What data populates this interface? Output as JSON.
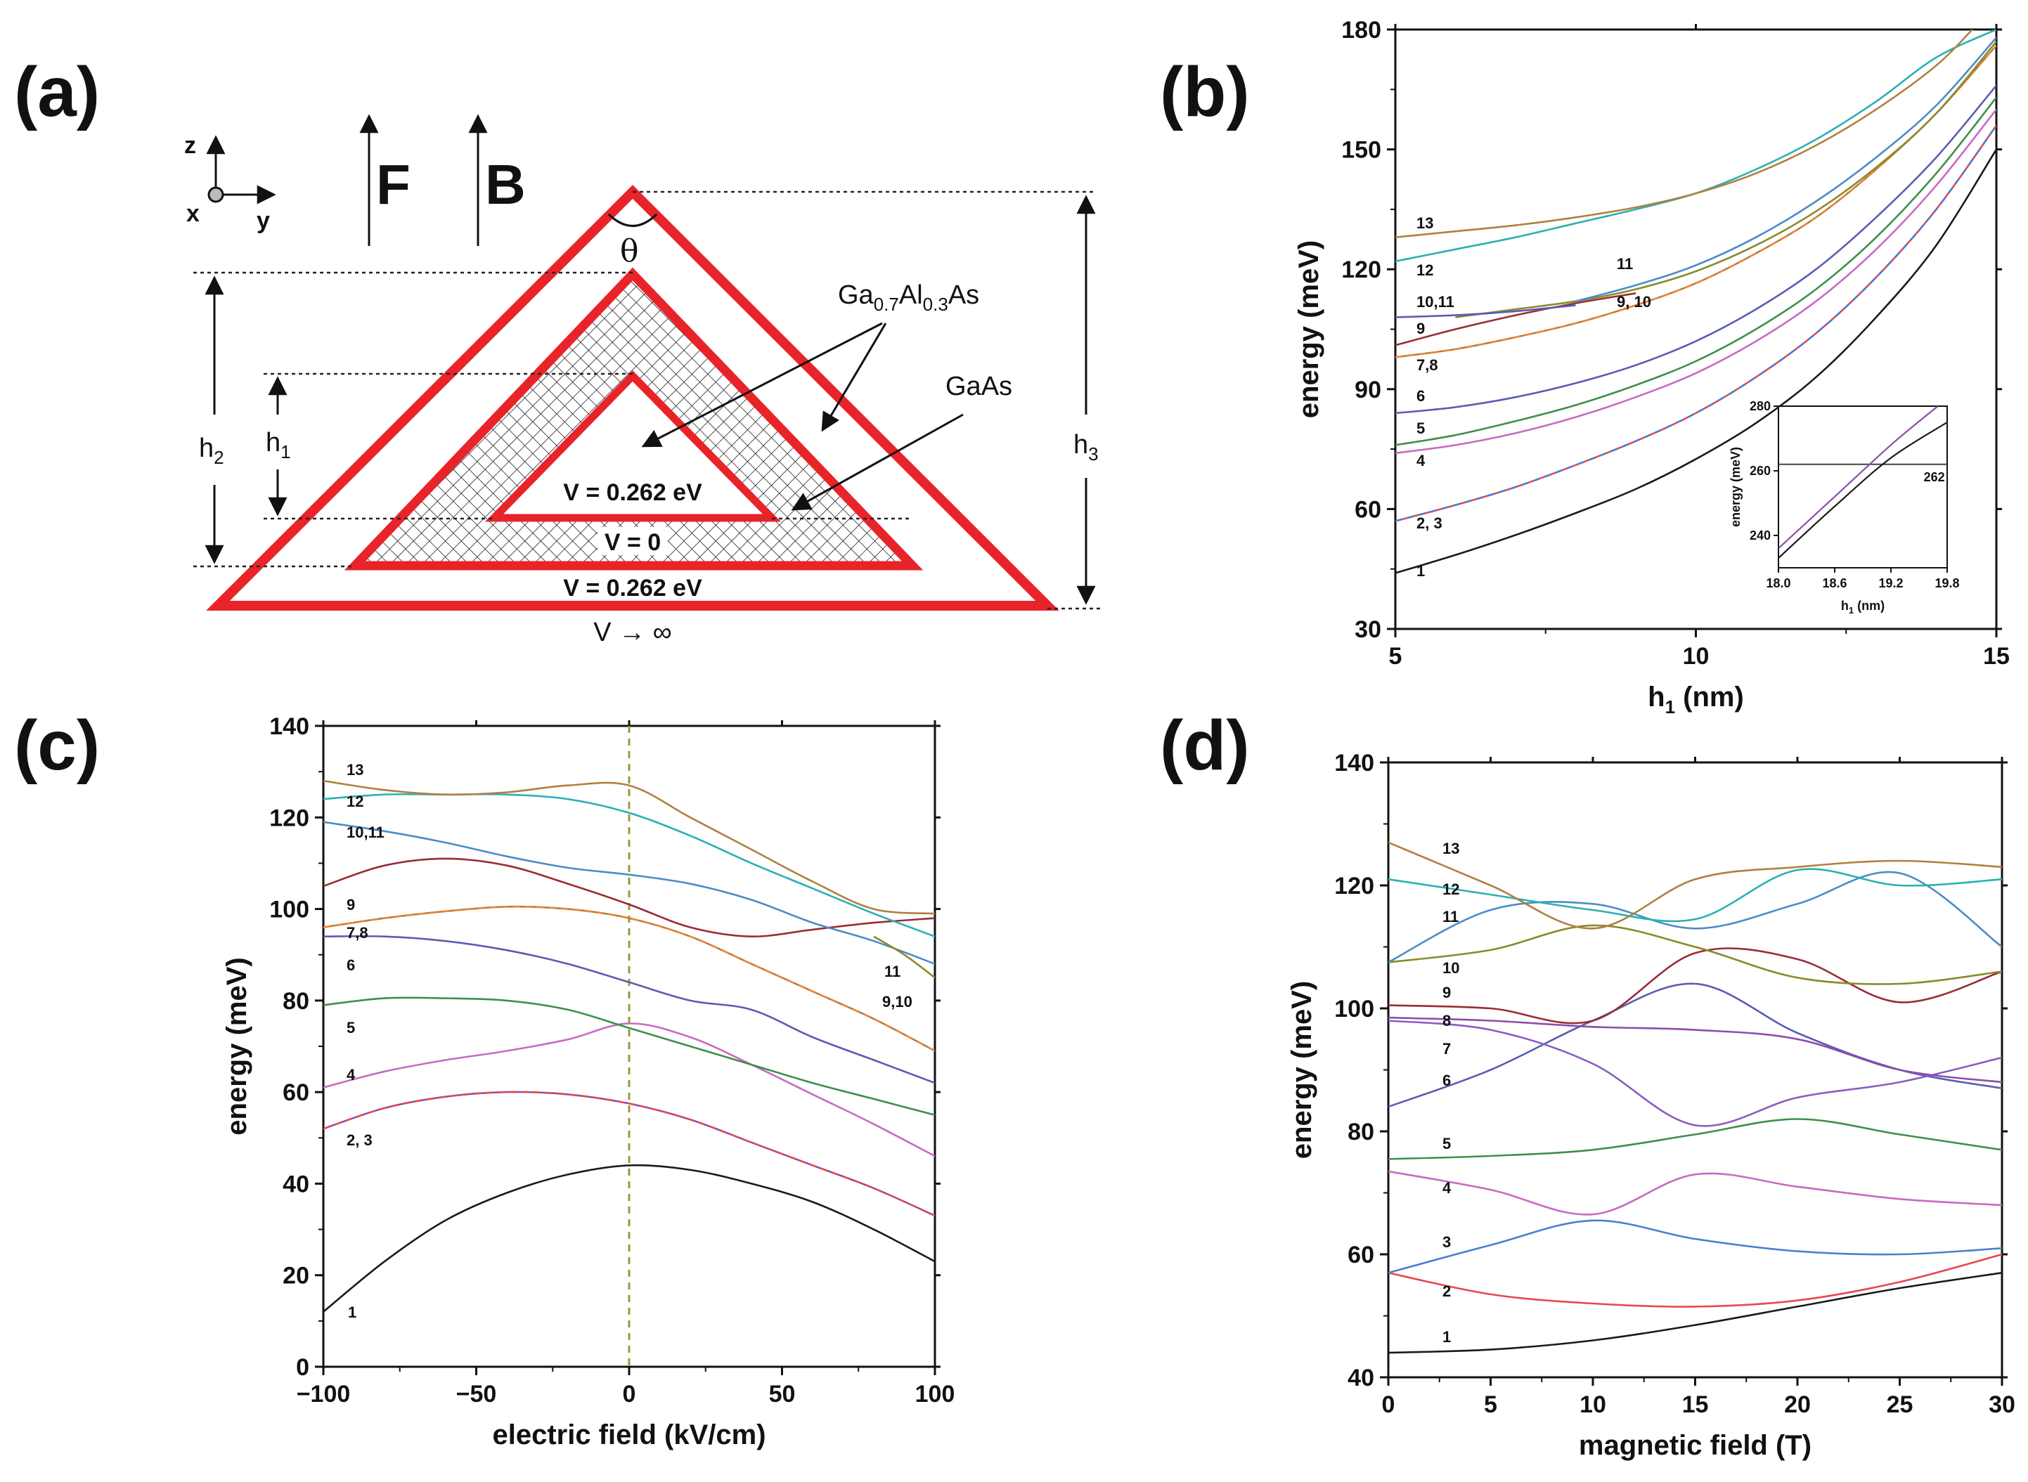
{
  "panel_labels": {
    "a": "(a)",
    "b": "(b)",
    "c": "(c)",
    "d": "(d)"
  },
  "diagram": {
    "axis_z": "z",
    "axis_x": "x",
    "axis_y": "y",
    "field_F": "F",
    "field_B": "B",
    "angle": "θ",
    "barrier_material": "Ga0.7Al0.3As",
    "barrier_parts": {
      "base1": "Ga",
      "sub1": "0.7",
      "base2": "Al",
      "sub2": "0.3",
      "base3": "As"
    },
    "well_material": "GaAs",
    "v_inner": "V = 0.262 eV",
    "v_well": "V = 0",
    "v_outer": "V = 0.262 eV",
    "v_infinite": "V → ∞",
    "h1": {
      "base": "h",
      "sub": "1"
    },
    "h2": {
      "base": "h",
      "sub": "2"
    },
    "h3": {
      "base": "h",
      "sub": "3"
    }
  },
  "colors": {
    "red": "#e8242a",
    "s1": "#1a1a1a",
    "s2": "#e8484f",
    "s3": "#4a7fd0",
    "s4": "#c86ac2",
    "s5": "#3f8f4a",
    "s6": "#5a5cb5",
    "s7": "#8a5dc0",
    "s8": "#8b4fa8",
    "s9": "#9a2b36",
    "s10": "#8a8a2a",
    "s11": "#4b8cc8",
    "s12": "#2ab0b4",
    "s13": "#b08040",
    "orange": "#f0843a",
    "vline": "#9a9a3a"
  },
  "chart_data": [
    {
      "id": "b",
      "type": "line",
      "xlabel": {
        "base": "h",
        "sub": "1",
        "rest": " (nm)"
      },
      "ylabel": "energy (meV)",
      "xlim": [
        5,
        15
      ],
      "ylim": [
        30,
        180
      ],
      "xticks": [
        "5",
        "10",
        "15"
      ],
      "yticks": [
        "30",
        "60",
        "90",
        "120",
        "150",
        "180"
      ],
      "series": [
        {
          "name": "1",
          "color": "s1",
          "x": [
            5,
            6,
            7,
            8,
            9,
            10,
            11,
            12,
            13,
            14,
            15
          ],
          "y": [
            44,
            48.5,
            53.5,
            59,
            65,
            72.5,
            81.5,
            93,
            108,
            126,
            150
          ]
        },
        {
          "name": "2, 3",
          "color": "s2",
          "dashed_with": "s3",
          "x": [
            5,
            6,
            7,
            8,
            9,
            10,
            11,
            12,
            13,
            14,
            15
          ],
          "y": [
            57,
            61,
            65.5,
            71,
            77,
            84,
            93,
            104,
            118,
            135,
            156
          ]
        },
        {
          "name": "4",
          "color": "s4",
          "x": [
            5,
            6,
            7,
            8,
            9,
            10,
            11,
            12,
            13,
            14,
            15
          ],
          "y": [
            74,
            76,
            79,
            83,
            88,
            94,
            102,
            112,
            125,
            141,
            160
          ]
        },
        {
          "name": "5",
          "color": "s5",
          "x": [
            5,
            6,
            7,
            8,
            9,
            10,
            11,
            12,
            13,
            14,
            15
          ],
          "y": [
            76,
            78.5,
            82,
            86,
            91,
            97,
            105,
            115,
            128,
            144,
            163
          ]
        },
        {
          "name": "6",
          "color": "s6",
          "x": [
            5,
            6,
            7,
            8,
            9,
            10,
            11,
            12,
            13,
            14,
            15
          ],
          "y": [
            84,
            85.5,
            88,
            91.5,
            96,
            102,
            110,
            120,
            133,
            148,
            166
          ]
        },
        {
          "name": "7,8",
          "color": "s13",
          "dashed_with": "orange",
          "x": [
            5,
            6,
            7,
            8,
            9,
            10,
            11,
            12,
            13,
            14,
            15
          ],
          "y": [
            98,
            100,
            103,
            106.5,
            111,
            116.5,
            124,
            133,
            145,
            159,
            176
          ]
        },
        {
          "name": "9",
          "color": "s9",
          "x": [
            5,
            6,
            7,
            8,
            9
          ],
          "y": [
            101,
            105,
            108.5,
            111.5,
            114
          ]
        },
        {
          "name": "9, 10",
          "color": "s10",
          "x": [
            6,
            7,
            8,
            9,
            10,
            11,
            12,
            13,
            14,
            15
          ],
          "y": [
            108,
            110,
            112,
            115,
            119.5,
            126,
            134.5,
            145.5,
            159,
            177
          ]
        },
        {
          "name": "10,11",
          "color": "s6",
          "x": [
            5,
            6,
            7,
            8
          ],
          "y": [
            108,
            108.5,
            109.5,
            111
          ]
        },
        {
          "name": "11",
          "color": "s11",
          "x": [
            8,
            9,
            10,
            11,
            12,
            13,
            14,
            15
          ],
          "y": [
            112,
            116,
            121,
            128,
            137,
            148,
            161,
            178
          ]
        },
        {
          "name": "12",
          "color": "s12",
          "x": [
            5,
            6,
            7,
            8,
            9,
            10,
            11,
            12,
            13,
            14,
            15
          ],
          "y": [
            122,
            125,
            128,
            131.5,
            135,
            139,
            145,
            152.5,
            162,
            173,
            180
          ]
        },
        {
          "name": "13",
          "color": "s13",
          "x": [
            5,
            6,
            7,
            8,
            9,
            10,
            11,
            12,
            13,
            14,
            14.6
          ],
          "y": [
            128,
            129.5,
            131,
            133,
            135.5,
            139,
            144,
            151,
            160,
            171,
            180
          ]
        }
      ],
      "inset": {
        "xlabel": {
          "base": "h",
          "sub": "1",
          "rest": " (nm)"
        },
        "ylabel": "energy (meV)",
        "xlim": [
          18.0,
          19.8
        ],
        "ylim": [
          230,
          280
        ],
        "xticks": [
          "18.0",
          "18.6",
          "19.2",
          "19.8"
        ],
        "yticks": [
          "240",
          "260",
          "280"
        ],
        "hline": 262,
        "hline_label": "262",
        "series": [
          {
            "color": "s8",
            "x": [
              18.0,
              18.6,
              19.2,
              19.7
            ],
            "y": [
              236,
              252,
              268,
              280
            ]
          },
          {
            "color": "s1",
            "x": [
              18.0,
              18.6,
              19.2,
              19.8
            ],
            "y": [
              233,
              249,
              264,
              275
            ]
          }
        ]
      }
    },
    {
      "id": "c",
      "type": "line",
      "xlabel": "electric field (kV/cm)",
      "ylabel": "energy (meV)",
      "xlim": [
        -100,
        100
      ],
      "ylim": [
        0,
        140
      ],
      "xticks": [
        "−100",
        "−50",
        "0",
        "50",
        "100"
      ],
      "yticks": [
        "0",
        "20",
        "40",
        "60",
        "80",
        "100",
        "120",
        "140"
      ],
      "vline": 0,
      "series": [
        {
          "name": "1",
          "color": "s1",
          "x": [
            -100,
            -80,
            -60,
            -40,
            -20,
            0,
            20,
            40,
            60,
            80,
            100
          ],
          "y": [
            12,
            23,
            32,
            38,
            42,
            44,
            43,
            40,
            36,
            30,
            23
          ]
        },
        {
          "name": "2, 3",
          "color": "s8",
          "dashed_with": "s2",
          "x": [
            -100,
            -80,
            -60,
            -40,
            -20,
            0,
            20,
            40,
            60,
            80,
            100
          ],
          "y": [
            52,
            56.5,
            59,
            60,
            59.5,
            57.5,
            54,
            49,
            44,
            39,
            33
          ]
        },
        {
          "name": "4",
          "color": "s4",
          "x": [
            -100,
            -80,
            -60,
            -40,
            -20,
            0,
            20,
            40,
            60,
            80,
            100
          ],
          "y": [
            61,
            64.5,
            67,
            69,
            71.5,
            75,
            72,
            66,
            59.5,
            53,
            46
          ]
        },
        {
          "name": "5",
          "color": "s5",
          "x": [
            -100,
            -80,
            -60,
            -40,
            -20,
            0,
            20,
            40,
            60,
            80,
            100
          ],
          "y": [
            79,
            80.5,
            80.5,
            80,
            78,
            74,
            70,
            66,
            62,
            58.5,
            55
          ]
        },
        {
          "name": "6",
          "color": "s6",
          "x": [
            -100,
            -80,
            -60,
            -40,
            -20,
            0,
            20,
            40,
            60,
            80,
            100
          ],
          "y": [
            94,
            94,
            93,
            91,
            88,
            84,
            80,
            78,
            72,
            67,
            62
          ]
        },
        {
          "name": "7,8",
          "color": "s13",
          "dashed_with": "orange",
          "x": [
            -100,
            -80,
            -60,
            -40,
            -20,
            0,
            20,
            40,
            60,
            80,
            100
          ],
          "y": [
            96,
            98,
            99.5,
            100.5,
            100,
            98,
            94,
            88,
            82,
            76,
            69
          ]
        },
        {
          "name": "9",
          "color": "s9",
          "x": [
            -100,
            -80,
            -60,
            -40,
            -20,
            0,
            20,
            40,
            60,
            80,
            100
          ],
          "y": [
            105,
            109.5,
            111,
            109.5,
            105.5,
            101,
            96,
            94,
            95.5,
            97,
            98
          ]
        },
        {
          "name": "10,11",
          "color": "s11",
          "x": [
            -100,
            -80,
            -60,
            -40,
            -20,
            0,
            20,
            40,
            60,
            80,
            100
          ],
          "y": [
            119,
            117,
            114.5,
            111.5,
            109,
            107.5,
            105.5,
            102,
            97,
            93,
            88
          ]
        },
        {
          "name": "9,10",
          "color": "s10",
          "x": [
            80,
            90,
            100
          ],
          "y": [
            94,
            90,
            85
          ]
        },
        {
          "name": "12",
          "color": "s12",
          "x": [
            -100,
            -80,
            -60,
            -40,
            -20,
            0,
            20,
            40,
            60,
            80,
            100
          ],
          "y": [
            124,
            125,
            125,
            125,
            124,
            121,
            116,
            110,
            104.5,
            99,
            94
          ]
        },
        {
          "name": "13",
          "color": "s13",
          "x": [
            -100,
            -80,
            -60,
            -40,
            -20,
            0,
            20,
            40,
            60,
            80,
            100
          ],
          "y": [
            128,
            126,
            125,
            125.5,
            127,
            127,
            120,
            113,
            106,
            100,
            99
          ]
        }
      ],
      "labels_right": {
        "11": "11",
        "9,10": "9,10"
      }
    },
    {
      "id": "d",
      "type": "line",
      "xlabel": "magnetic field (T)",
      "ylabel": "energy (meV)",
      "xlim": [
        0,
        30
      ],
      "ylim": [
        40,
        140
      ],
      "xticks": [
        "0",
        "5",
        "10",
        "15",
        "20",
        "25",
        "30"
      ],
      "yticks": [
        "40",
        "60",
        "80",
        "100",
        "120",
        "140"
      ],
      "series": [
        {
          "name": "1",
          "color": "s1",
          "x": [
            0,
            5,
            10,
            15,
            20,
            25,
            30
          ],
          "y": [
            44,
            44.5,
            46,
            48.5,
            51.5,
            54.5,
            57
          ]
        },
        {
          "name": "2",
          "color": "s2",
          "x": [
            0,
            5,
            10,
            15,
            20,
            25,
            30
          ],
          "y": [
            57,
            53.5,
            52,
            51.5,
            52.5,
            55.5,
            60
          ]
        },
        {
          "name": "3",
          "color": "s3",
          "x": [
            0,
            5,
            10,
            15,
            20,
            25,
            30
          ],
          "y": [
            57,
            61.5,
            65.5,
            62.5,
            60.5,
            60,
            61
          ]
        },
        {
          "name": "4",
          "color": "s4",
          "x": [
            0,
            5,
            10,
            15,
            20,
            25,
            30
          ],
          "y": [
            73.5,
            70.5,
            66.5,
            73,
            71,
            69,
            68
          ]
        },
        {
          "name": "5",
          "color": "s5",
          "x": [
            0,
            5,
            10,
            15,
            20,
            25,
            30
          ],
          "y": [
            75.5,
            76,
            77,
            79.5,
            82,
            79.5,
            77
          ]
        },
        {
          "name": "6",
          "color": "s6",
          "x": [
            0,
            5,
            10,
            15,
            20,
            25,
            30
          ],
          "y": [
            84,
            90,
            98,
            104,
            96,
            90,
            87
          ]
        },
        {
          "name": "7",
          "color": "s7",
          "x": [
            0,
            5,
            10,
            15,
            20,
            25,
            30
          ],
          "y": [
            98,
            96.5,
            91,
            81,
            85.5,
            88,
            92
          ]
        },
        {
          "name": "8",
          "color": "s8",
          "x": [
            0,
            5,
            10,
            15,
            20,
            25,
            30
          ],
          "y": [
            98.5,
            98,
            97,
            96.5,
            95,
            90,
            88
          ]
        },
        {
          "name": "9",
          "color": "s9",
          "x": [
            0,
            5,
            10,
            15,
            20,
            25,
            30
          ],
          "y": [
            100.5,
            100,
            98,
            109,
            108,
            101,
            106
          ]
        },
        {
          "name": "10",
          "color": "s10",
          "x": [
            0,
            5,
            10,
            15,
            20,
            25,
            30
          ],
          "y": [
            107.5,
            109.5,
            113.5,
            110,
            105,
            104,
            106
          ]
        },
        {
          "name": "11",
          "color": "s11",
          "x": [
            0,
            5,
            10,
            15,
            20,
            25,
            30
          ],
          "y": [
            107.5,
            116,
            117,
            113,
            117,
            122,
            110
          ]
        },
        {
          "name": "12",
          "color": "s12",
          "x": [
            0,
            5,
            10,
            15,
            20,
            25,
            30
          ],
          "y": [
            121,
            118.5,
            116,
            114.5,
            122.5,
            120,
            121
          ]
        },
        {
          "name": "13",
          "color": "s13",
          "x": [
            0,
            5,
            10,
            15,
            20,
            25,
            30
          ],
          "y": [
            127,
            120,
            113,
            121,
            123,
            124,
            123
          ]
        }
      ]
    }
  ]
}
